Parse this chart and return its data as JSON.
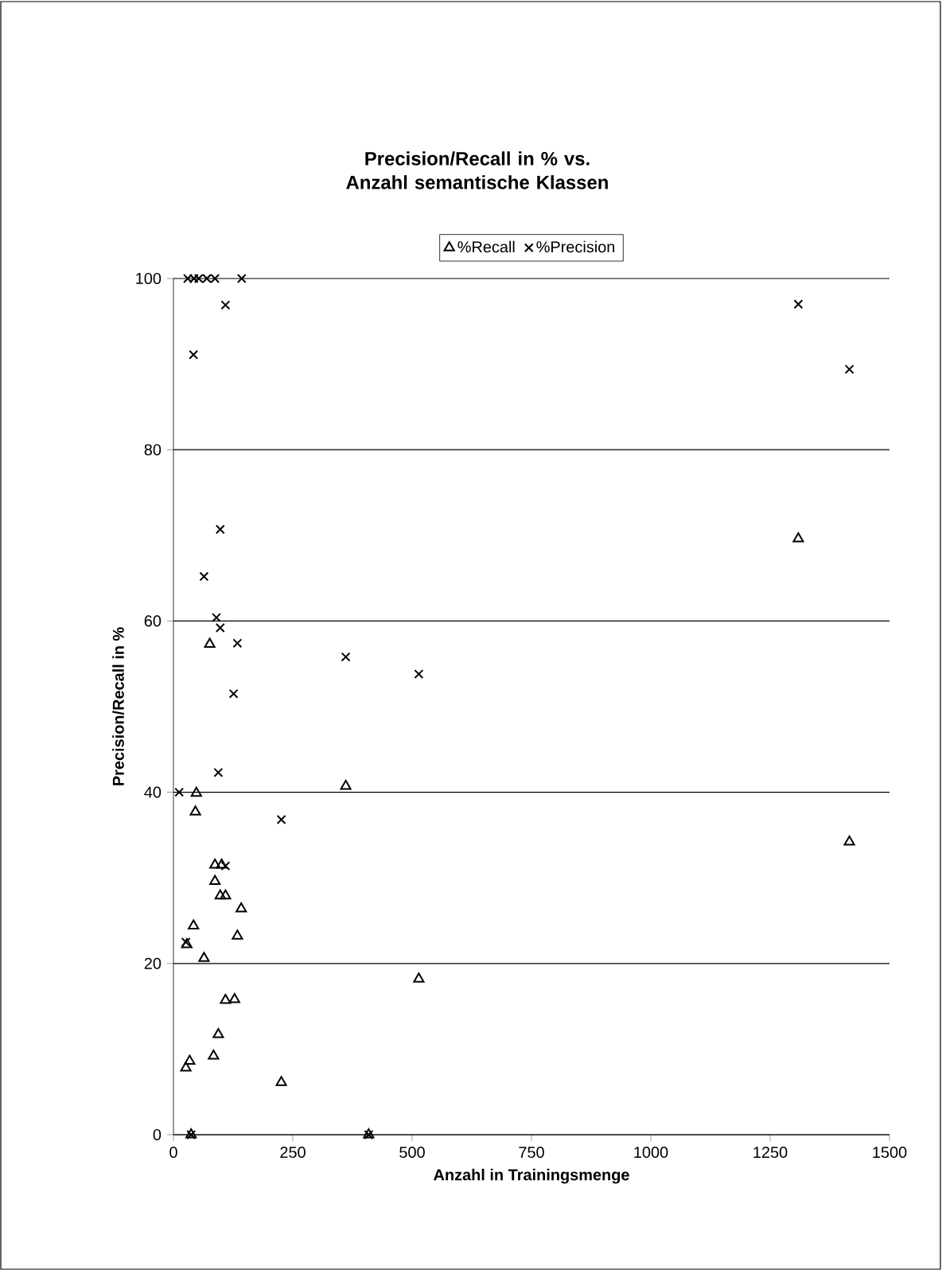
{
  "chart_data": {
    "type": "scatter",
    "title": "Precision/Recall in % vs. Anzahl semantische Klassen",
    "xlabel": "Anzahl in Trainingsmenge",
    "ylabel": "Precision/Recall in %",
    "xlim": [
      0,
      1500
    ],
    "xticks": [
      0,
      250,
      500,
      750,
      1000,
      1250,
      1500
    ],
    "ylim": [
      0,
      100
    ],
    "yticks": [
      0,
      20,
      40,
      60,
      80,
      100
    ],
    "grid": "y",
    "legend": "top",
    "series": [
      {
        "name": "%Recall",
        "color": "#000000",
        "marker": "triangle",
        "x": [
          361,
          48,
          46,
          87,
          101,
          87,
          98,
          109,
          142,
          42,
          134,
          28,
          64,
          514,
          109,
          128,
          94,
          84,
          34,
          26,
          226,
          37,
          409,
          76,
          1309,
          1416
        ],
        "values": [
          40.7,
          39.9,
          37.7,
          31.5,
          31.5,
          29.6,
          27.9,
          27.9,
          26.4,
          24.4,
          23.2,
          22.2,
          20.6,
          18.2,
          15.7,
          15.8,
          11.7,
          9.2,
          8.6,
          7.8,
          6.1,
          0,
          0,
          57.3,
          69.6,
          34.2
        ]
      },
      {
        "name": "%Precision",
        "color": "#000000",
        "marker": "cross",
        "x": [
          30,
          43,
          53,
          70,
          87,
          143,
          42,
          109,
          98,
          64,
          90,
          98,
          134,
          361,
          514,
          126,
          94,
          12,
          226,
          109,
          26,
          37,
          409,
          1309,
          1416
        ],
        "values": [
          100,
          100,
          100,
          100,
          100,
          100,
          91.1,
          96.9,
          70.7,
          65.2,
          60.4,
          59.2,
          57.4,
          55.8,
          53.8,
          51.5,
          42.3,
          40.0,
          36.8,
          31.4,
          22.5,
          0,
          0,
          97.0,
          89.4
        ]
      }
    ]
  }
}
